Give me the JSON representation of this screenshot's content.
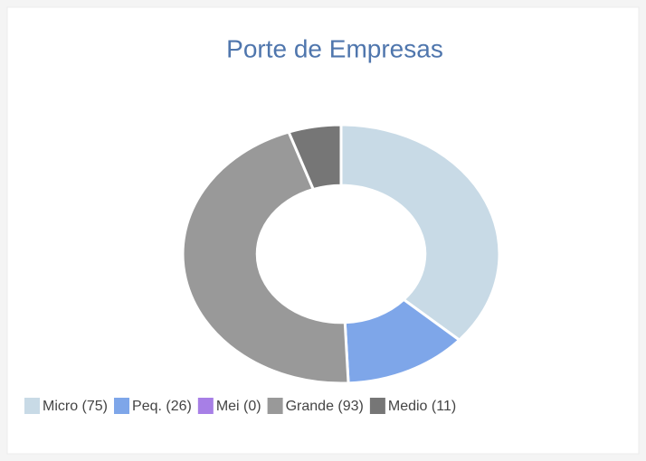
{
  "chart_data": {
    "type": "donut",
    "title": "Porte de Empresas",
    "categories": [
      "Micro (75)",
      "Peq. (26)",
      "Mei (0)",
      "Grande (93)",
      "Medio (11)"
    ],
    "values": [
      75,
      26,
      0,
      93,
      11
    ],
    "colors": [
      "#c8dae6",
      "#7ea6e9",
      "#a77fe6",
      "#999999",
      "#767676"
    ],
    "legend": "bottom"
  }
}
